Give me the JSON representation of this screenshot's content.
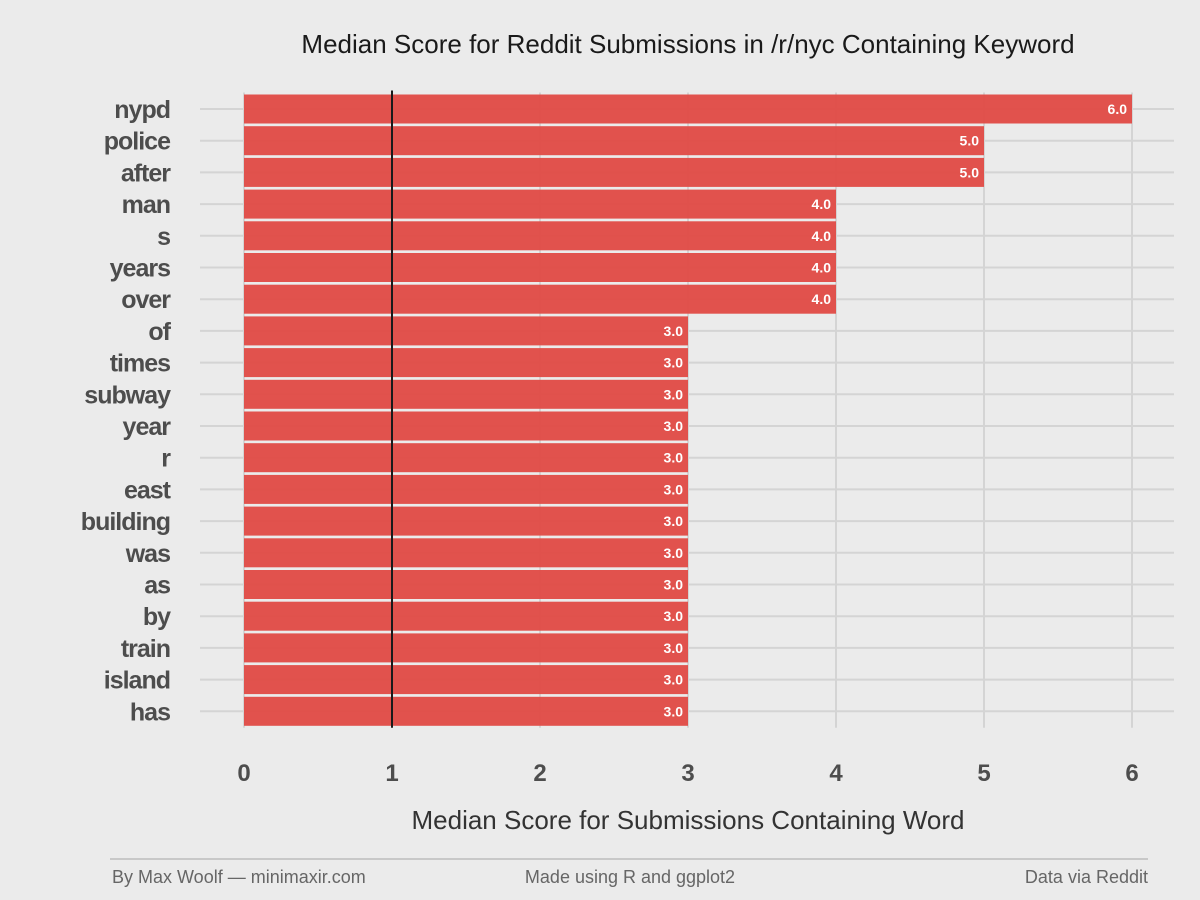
{
  "chart_data": {
    "type": "bar",
    "orientation": "horizontal",
    "title": "Median Score for Reddit Submissions in /r/nyc Containing Keyword",
    "xlabel": "Median Score for Submissions Containing Word",
    "ylabel": "",
    "categories": [
      "nypd",
      "police",
      "after",
      "man",
      "s",
      "years",
      "over",
      "of",
      "times",
      "subway",
      "year",
      "r",
      "east",
      "building",
      "was",
      "as",
      "by",
      "train",
      "island",
      "has"
    ],
    "values": [
      6,
      5,
      5,
      4,
      4,
      4,
      4,
      3,
      3,
      3,
      3,
      3,
      3,
      3,
      3,
      3,
      3,
      3,
      3,
      3
    ],
    "data_labels": [
      "6.0",
      "5.0",
      "5.0",
      "4.0",
      "4.0",
      "4.0",
      "4.0",
      "3.0",
      "3.0",
      "3.0",
      "3.0",
      "3.0",
      "3.0",
      "3.0",
      "3.0",
      "3.0",
      "3.0",
      "3.0",
      "3.0",
      "3.0"
    ],
    "xticks": [
      "0",
      "1",
      "2",
      "3",
      "4",
      "5",
      "6"
    ],
    "xlim": [
      0,
      6
    ],
    "reference_line": 1,
    "grid": true,
    "colors": {
      "bar": "#e04a45",
      "background": "#ebebeb",
      "grid": "#d4d4d4",
      "reference_line": "#1a1a1a"
    }
  },
  "footer": {
    "left": "By Max Woolf — minimaxir.com",
    "center": "Made using R and ggplot2",
    "right": "Data via Reddit"
  }
}
